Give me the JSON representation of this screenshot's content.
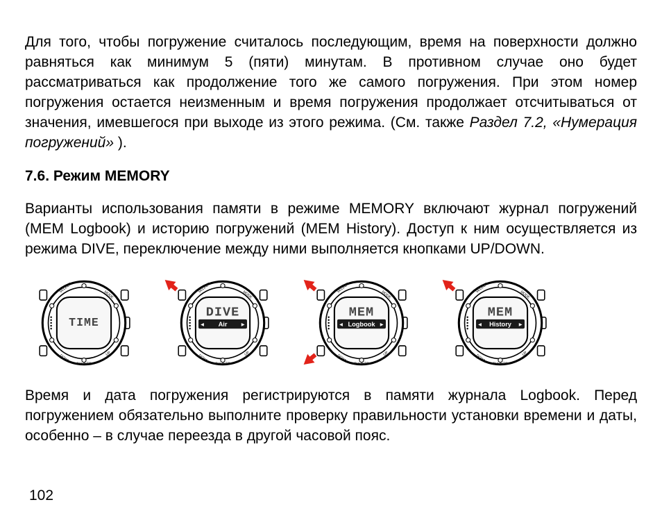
{
  "paragraphs": {
    "p1_a": "Для того, чтобы погружение считалось последующим, время на поверхности должно равняться как минимум 5 (пяти) минутам. В противном случае оно будет рассматриваться как продолжение того же самого погружения. При этом номер погружения остается неизменным и время погружения продолжает отсчитываться от значения, имевшегося при выходе из этого режима. (См. также ",
    "p1_ref": "Раздел 7.2, «Нумерация погружений»",
    "p1_b": " ).",
    "heading": "7.6. Режим MEMORY",
    "p2": "Варианты использования памяти в режиме MEMORY включают журнал погружений (MEM Logbook) и историю погружений (MEM History). Доступ к ним осуществляется из режима DIVE, переключение между ними выполняется кнопками UP/DOWN.",
    "p3": "Время и дата погружения регистрируются в памяти журнала Logbook. Перед погружением обязательно выполните проверку правильности установки времени и даты, особенно – в случае переезда в другой часовой пояс."
  },
  "page_number": "102",
  "watches": [
    {
      "main": "TIME",
      "sub": "",
      "arrows": []
    },
    {
      "main": "DIVE",
      "sub": "Air",
      "arrows": [
        "top-left"
      ]
    },
    {
      "main": "MEM",
      "sub": "Logbook",
      "arrows": [
        "top-left",
        "bottom-left"
      ]
    },
    {
      "main": "MEM",
      "sub": "History",
      "arrows": [
        "top-left"
      ]
    }
  ],
  "colors": {
    "arrow": "#e2231a",
    "screen_band": "#1a1a1a",
    "case_stroke": "#000",
    "screen_bg": "#f7f7f7"
  }
}
